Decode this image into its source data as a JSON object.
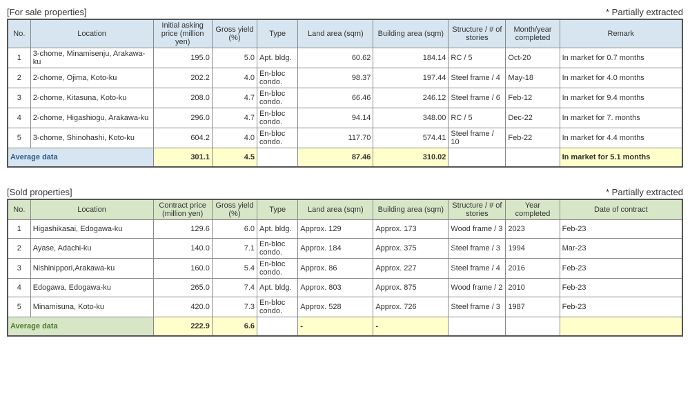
{
  "forSale": {
    "title": "[For sale properties]",
    "note": "* Partially extracted",
    "theme": {
      "headerBg": "#d6e5ef",
      "avgBg": "#d6e5ef",
      "avgColor": "#2a5a8a"
    },
    "columns": [
      "No.",
      "Location",
      "Initial asking price (million yen)",
      "Gross yield (%)",
      "Type",
      "Land area (sqm)",
      "Building area (sqm)",
      "Structure / # of stories",
      "Month/year completed",
      "Remark"
    ],
    "rows": [
      {
        "no": "1",
        "location": "3-chome, Minamisenju, Arakawa-ku",
        "price": "195.0",
        "yield": "5.0",
        "type": "Apt. bldg.",
        "land": "60.62",
        "bldg": "184.14",
        "struct": "RC / 5",
        "date": "Oct-20",
        "remark": "In market for 0.7 months"
      },
      {
        "no": "2",
        "location": "2-chome, Ojima, Koto-ku",
        "price": "202.2",
        "yield": "4.0",
        "type": "En-bloc condo.",
        "land": "98.37",
        "bldg": "197.44",
        "struct": "Steel frame / 4",
        "date": "May-18",
        "remark": "In market for 4.0 months"
      },
      {
        "no": "3",
        "location": "2-chome, Kitasuna, Koto-ku",
        "price": "208.0",
        "yield": "4.7",
        "type": "En-bloc condo.",
        "land": "66.46",
        "bldg": "246.12",
        "struct": "Steel frame / 6",
        "date": "Feb-12",
        "remark": "In market for 9.4 months"
      },
      {
        "no": "4",
        "location": "2-chome, Higashiogu, Arakawa-ku",
        "price": "296.0",
        "yield": "4.7",
        "type": "En-bloc condo.",
        "land": "94.14",
        "bldg": "348.00",
        "struct": "RC / 5",
        "date": "Dec-22",
        "remark": "In market for 7. months"
      },
      {
        "no": "5",
        "location": "3-chome, Shinohashi, Koto-ku",
        "price": "604.2",
        "yield": "4.0",
        "type": "En-bloc condo.",
        "land": "117.70",
        "bldg": "574.41",
        "struct": "Steel frame / 10",
        "date": "Feb-22",
        "remark": "In market for 4.4 months"
      }
    ],
    "avg": {
      "label": "Average data",
      "price": "301.1",
      "yield": "4.5",
      "type": "",
      "land": "87.46",
      "bldg": "310.02",
      "struct": "",
      "date": "",
      "remark": "In market for 5.1 months"
    }
  },
  "sold": {
    "title": "[Sold properties]",
    "note": "* Partially extracted",
    "theme": {
      "headerBg": "#d8e6c8",
      "avgBg": "#d8e6c8",
      "avgColor": "#4a7a2a"
    },
    "columns": [
      "No.",
      "Location",
      "Contract price (million yen)",
      "Gross yield (%)",
      "Type",
      "Land area (sqm)",
      "Building area (sqm)",
      "Structure / # of stories",
      "Year completed",
      "Date of contract"
    ],
    "rows": [
      {
        "no": "1",
        "location": "Higashikasai, Edogawa-ku",
        "price": "129.6",
        "yield": "6.0",
        "type": "Apt. bldg.",
        "land": "Approx. 129",
        "bldg": "Approx. 173",
        "struct": "Wood frame / 3",
        "date": "2023",
        "remark": "Feb-23"
      },
      {
        "no": "2",
        "location": "Ayase, Adachi-ku",
        "price": "140.0",
        "yield": "7.1",
        "type": "En-bloc condo.",
        "land": "Approx. 184",
        "bldg": "Approx. 375",
        "struct": "Steel frame / 3",
        "date": "1994",
        "remark": "Mar-23"
      },
      {
        "no": "3",
        "location": "Nishinippori,Arakawa-ku",
        "price": "160.0",
        "yield": "5.4",
        "type": "En-bloc condo.",
        "land": "Approx. 86",
        "bldg": "Approx. 227",
        "struct": "Steel frame / 4",
        "date": "2016",
        "remark": "Feb-23"
      },
      {
        "no": "4",
        "location": "Edogawa, Edogawa-ku",
        "price": "265.0",
        "yield": "7.4",
        "type": "Apt. bldg.",
        "land": "Approx. 803",
        "bldg": "Approx. 875",
        "struct": "Wood frame / 2",
        "date": "2010",
        "remark": "Feb-23"
      },
      {
        "no": "5",
        "location": "Minamisuna, Koto-ku",
        "price": "420.0",
        "yield": "7.3",
        "type": "En-bloc condo.",
        "land": "Approx. 528",
        "bldg": "Approx. 726",
        "struct": "Steel frame / 3",
        "date": "1987",
        "remark": "Feb-23"
      }
    ],
    "avg": {
      "label": "Average data",
      "price": "222.9",
      "yield": "6.6",
      "type": "",
      "land": "-",
      "bldg": "-",
      "struct": "",
      "date": "",
      "remark": ""
    }
  },
  "colWidths": [
    "col-no",
    "col-location",
    "col-price",
    "col-yield",
    "col-type",
    "col-land",
    "col-bldg",
    "col-struct",
    "col-date",
    "col-remark"
  ],
  "landAlign": {
    "forSale": "num-r",
    "sold": "txt-l"
  }
}
